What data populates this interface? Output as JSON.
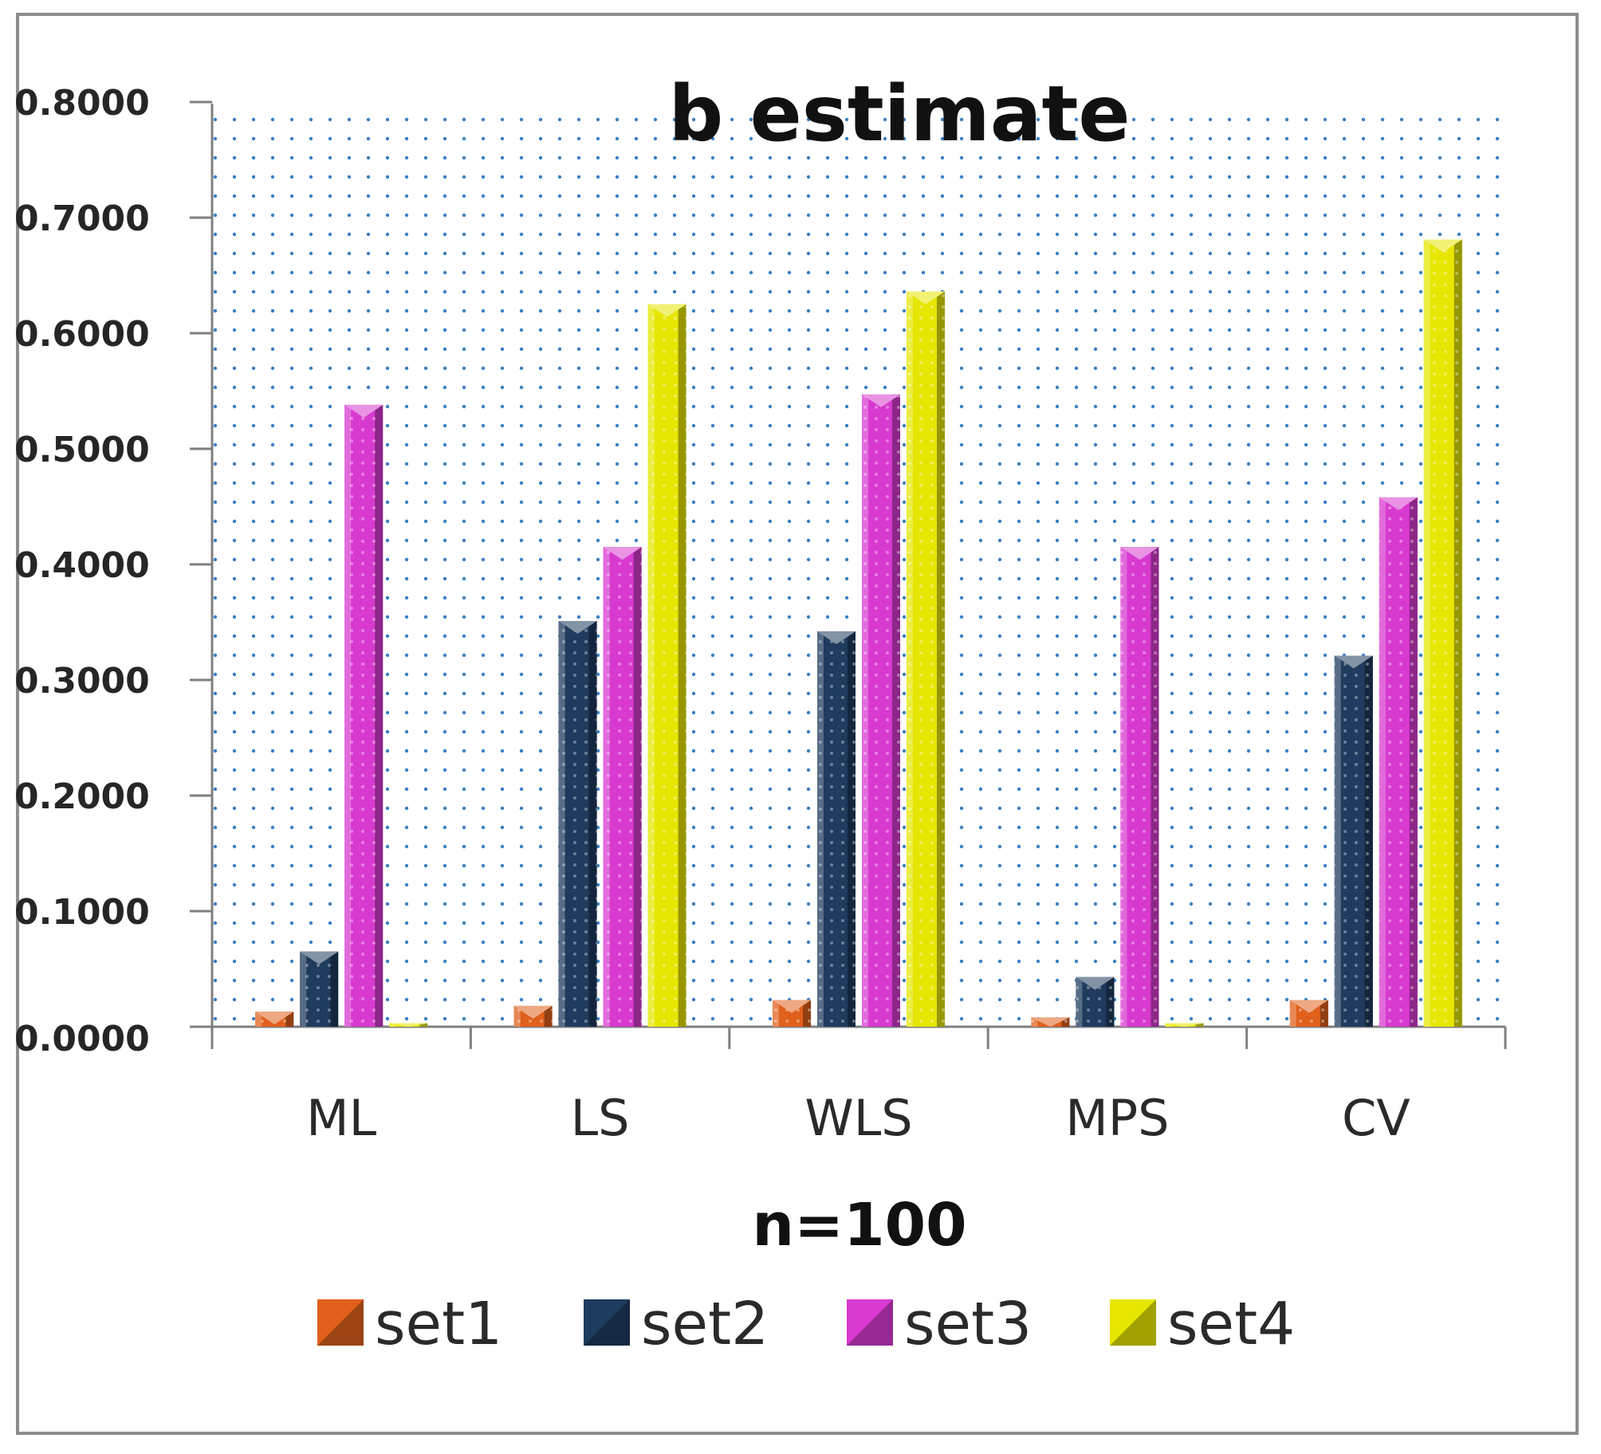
{
  "chart_data": {
    "type": "bar",
    "title": "b estimate",
    "xlabel": "n=100",
    "ylabel": "",
    "ylim": [
      0,
      0.8
    ],
    "yticks": [
      "0.0000",
      "0.1000",
      "0.2000",
      "0.3000",
      "0.4000",
      "0.5000",
      "0.6000",
      "0.7000",
      "0.8000"
    ],
    "categories": [
      "ML",
      "LS",
      "WLS",
      "MPS",
      "CV"
    ],
    "series": [
      {
        "name": "set1",
        "color": "#e0601c",
        "values": [
          0.013,
          0.018,
          0.023,
          0.008,
          0.023
        ]
      },
      {
        "name": "set2",
        "color": "#1f3b5e",
        "values": [
          0.065,
          0.351,
          0.342,
          0.043,
          0.321
        ]
      },
      {
        "name": "set3",
        "color": "#d83ad0",
        "values": [
          0.538,
          0.415,
          0.547,
          0.415,
          0.458
        ]
      },
      {
        "name": "set4",
        "color": "#e6e600",
        "values": [
          0.003,
          0.625,
          0.636,
          0.003,
          0.681
        ]
      }
    ],
    "legend_position": "bottom",
    "grid": true
  }
}
